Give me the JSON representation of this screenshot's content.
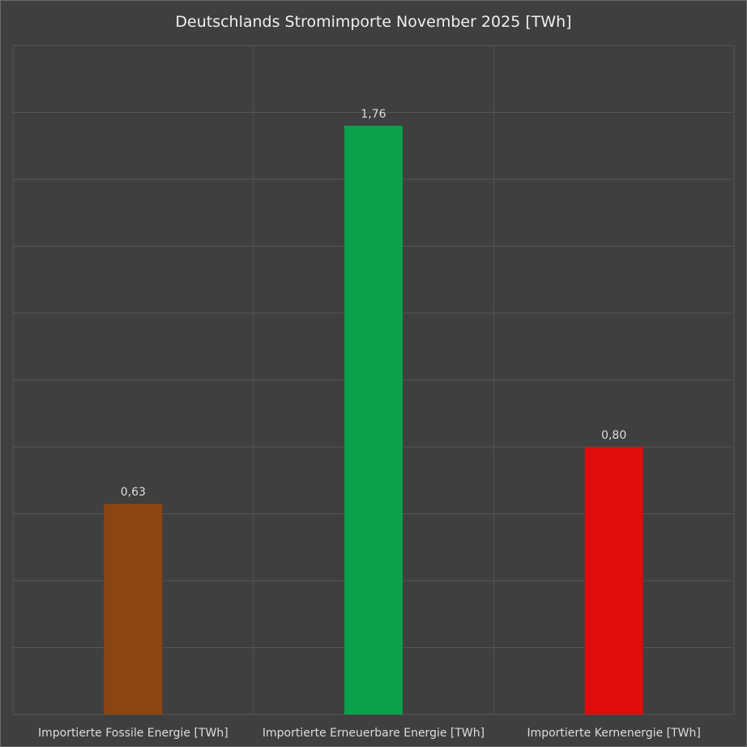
{
  "chart_data": {
    "type": "bar",
    "title": "Deutschlands Stromimporte November 2025 [TWh]",
    "categories": [
      "Importierte Fossile Energie [TWh]",
      "Importierte Erneuerbare Energie [TWh]",
      "Importierte Kernenergie [TWh]"
    ],
    "values": [
      0.63,
      1.76,
      0.8
    ],
    "value_labels": [
      "0,63",
      "1,76",
      "0,80"
    ],
    "bar_colors": [
      "#8b4513",
      "#0aa04c",
      "#e00b0b"
    ],
    "ylim": [
      0,
      2.0
    ],
    "y_grid_step": 0.2,
    "grid": true,
    "background_color": "#3f3f3f",
    "grid_color": "#555555",
    "text_color": "#dcdcdc",
    "legend": "none"
  }
}
